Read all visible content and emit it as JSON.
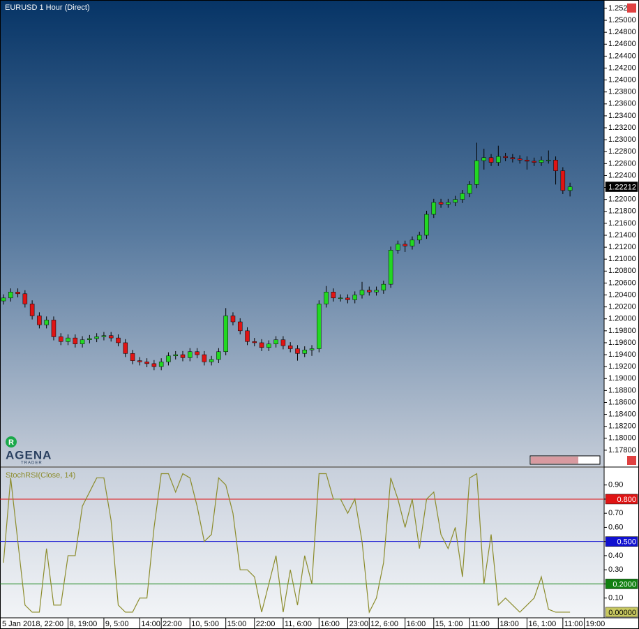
{
  "chart_data": [
    {
      "type": "candlestick",
      "title": "EURUSD 1 Hour (Direct)",
      "up_color": "#22d822",
      "down_color": "#e01414",
      "ylim": [
        1.1753,
        1.2534
      ],
      "yticks": [
        {
          "value": 1.178,
          "label": "1.17800"
        },
        {
          "value": 1.18,
          "label": "1.18000"
        },
        {
          "value": 1.182,
          "label": "1.18200"
        },
        {
          "value": 1.184,
          "label": "1.18400"
        },
        {
          "value": 1.186,
          "label": "1.18600"
        },
        {
          "value": 1.188,
          "label": "1.18800"
        },
        {
          "value": 1.19,
          "label": "1.19000"
        },
        {
          "value": 1.192,
          "label": "1.19200"
        },
        {
          "value": 1.194,
          "label": "1.19400"
        },
        {
          "value": 1.196,
          "label": "1.19600"
        },
        {
          "value": 1.198,
          "label": "1.19800"
        },
        {
          "value": 1.2,
          "label": "1.20000"
        },
        {
          "value": 1.202,
          "label": "1.20200"
        },
        {
          "value": 1.204,
          "label": "1.20400"
        },
        {
          "value": 1.206,
          "label": "1.20600"
        },
        {
          "value": 1.208,
          "label": "1.20800"
        },
        {
          "value": 1.21,
          "label": "1.21000"
        },
        {
          "value": 1.212,
          "label": "1.21200"
        },
        {
          "value": 1.214,
          "label": "1.21400"
        },
        {
          "value": 1.216,
          "label": "1.21600"
        },
        {
          "value": 1.218,
          "label": "1.21800"
        },
        {
          "value": 1.22,
          "label": "1.22000"
        },
        {
          "value": 1.222,
          "label": "1.22200"
        },
        {
          "value": 1.224,
          "label": "1.22400"
        },
        {
          "value": 1.226,
          "label": "1.22600"
        },
        {
          "value": 1.228,
          "label": "1.22800"
        },
        {
          "value": 1.23,
          "label": "1.23000"
        },
        {
          "value": 1.232,
          "label": "1.23200"
        },
        {
          "value": 1.234,
          "label": "1.23400"
        },
        {
          "value": 1.236,
          "label": "1.23600"
        },
        {
          "value": 1.238,
          "label": "1.23800"
        },
        {
          "value": 1.24,
          "label": "1.24000"
        },
        {
          "value": 1.242,
          "label": "1.24200"
        },
        {
          "value": 1.244,
          "label": "1.24400"
        },
        {
          "value": 1.246,
          "label": "1.24600"
        },
        {
          "value": 1.248,
          "label": "1.24800"
        },
        {
          "value": 1.25,
          "label": "1.25000"
        },
        {
          "value": 1.252,
          "label": "1.252"
        }
      ],
      "open": [
        1.203,
        1.2035,
        1.2045,
        1.2042,
        1.2025,
        1.2005,
        1.199,
        1.1998,
        1.197,
        1.1962,
        1.1968,
        1.1958,
        1.1965,
        1.1967,
        1.197,
        1.1972,
        1.1968,
        1.196,
        1.1942,
        1.193,
        1.1928,
        1.1925,
        1.192,
        1.1928,
        1.1938,
        1.194,
        1.1935,
        1.1945,
        1.194,
        1.1928,
        1.1932,
        1.1945,
        1.2005,
        1.1995,
        1.198,
        1.1962,
        1.196,
        1.1952,
        1.1958,
        1.1965,
        1.1955,
        1.195,
        1.1942,
        1.1948,
        1.195,
        1.2025,
        1.2045,
        1.2035,
        1.2035,
        1.2032,
        1.204,
        1.2048,
        1.2045,
        1.2048,
        1.2058,
        1.2115,
        1.2125,
        1.2122,
        1.2132,
        1.214,
        1.2175,
        1.2195,
        1.2192,
        1.2195,
        1.22,
        1.221,
        1.2225,
        1.2265,
        1.227,
        1.2262,
        1.2272,
        1.227,
        1.2268,
        1.2266,
        1.2264,
        1.2262,
        1.2266,
        1.2266,
        1.2248,
        1.2215,
        null,
        null,
        null,
        null
      ],
      "high": [
        1.2041,
        1.2051,
        1.2051,
        1.2048,
        1.2031,
        1.2011,
        1.2004,
        1.2004,
        1.1976,
        1.1974,
        1.1974,
        1.1971,
        1.1973,
        1.1976,
        1.1978,
        1.1978,
        1.1974,
        1.1966,
        1.1948,
        1.1936,
        1.1934,
        1.1931,
        1.1934,
        1.1944,
        1.1946,
        1.1946,
        1.1951,
        1.1951,
        1.1946,
        1.1938,
        1.1951,
        1.2018,
        1.2011,
        1.2001,
        1.1986,
        1.1968,
        1.1966,
        1.1964,
        1.1971,
        1.1971,
        1.1961,
        1.1956,
        1.1954,
        1.1956,
        1.2031,
        1.2055,
        1.2051,
        1.2041,
        1.2041,
        1.2046,
        1.2062,
        1.2054,
        1.2054,
        1.2064,
        1.2121,
        1.2131,
        1.2131,
        1.2138,
        1.2146,
        1.2181,
        1.2201,
        1.2201,
        1.2201,
        1.2206,
        1.2216,
        1.2231,
        1.2295,
        1.2285,
        1.2276,
        1.229,
        1.2278,
        1.2276,
        1.2274,
        1.2272,
        1.227,
        1.2272,
        1.2282,
        1.2272,
        1.2254,
        1.2228,
        null,
        null,
        null,
        null
      ],
      "low": [
        1.2024,
        1.2029,
        1.2036,
        1.2019,
        1.1999,
        1.1984,
        1.1984,
        1.1964,
        1.1956,
        1.1956,
        1.1952,
        1.1952,
        1.1959,
        1.1961,
        1.1964,
        1.1962,
        1.1954,
        1.1936,
        1.1924,
        1.1922,
        1.1919,
        1.1914,
        1.1914,
        1.1922,
        1.1932,
        1.1929,
        1.1929,
        1.1934,
        1.1922,
        1.1922,
        1.1926,
        1.1939,
        1.1989,
        1.1974,
        1.1956,
        1.1954,
        1.1946,
        1.1946,
        1.1952,
        1.1949,
        1.1944,
        1.193,
        1.1936,
        1.1938,
        1.1944,
        1.2019,
        1.2029,
        1.2029,
        1.2026,
        1.2026,
        1.2034,
        1.2039,
        1.2039,
        1.2042,
        1.2052,
        1.2109,
        1.2112,
        1.2116,
        1.2126,
        1.2134,
        1.2169,
        1.2186,
        1.2186,
        1.2189,
        1.2194,
        1.2204,
        1.2219,
        1.225,
        1.2256,
        1.2256,
        1.2264,
        1.2262,
        1.226,
        1.225,
        1.2256,
        1.2256,
        1.226,
        1.2225,
        1.2209,
        1.2205,
        null,
        null,
        null,
        null
      ],
      "close": [
        1.2035,
        1.2045,
        1.2042,
        1.2025,
        1.2005,
        1.199,
        1.1998,
        1.197,
        1.1962,
        1.1968,
        1.1958,
        1.1965,
        1.1967,
        1.197,
        1.1972,
        1.1968,
        1.196,
        1.1942,
        1.193,
        1.1928,
        1.1925,
        1.192,
        1.1928,
        1.1938,
        1.194,
        1.1935,
        1.1945,
        1.194,
        1.1928,
        1.1932,
        1.1945,
        1.2005,
        1.1995,
        1.198,
        1.1962,
        1.196,
        1.1952,
        1.1958,
        1.1965,
        1.1955,
        1.195,
        1.1942,
        1.1948,
        1.195,
        1.2025,
        1.2045,
        1.2035,
        1.2035,
        1.2032,
        1.204,
        1.2048,
        1.2045,
        1.2048,
        1.2058,
        1.2115,
        1.2125,
        1.2122,
        1.2132,
        1.214,
        1.2175,
        1.2195,
        1.2192,
        1.2195,
        1.22,
        1.221,
        1.2225,
        1.2265,
        1.227,
        1.2262,
        1.2272,
        1.227,
        1.2268,
        1.2266,
        1.2264,
        1.2262,
        1.2266,
        1.2266,
        1.2248,
        1.2215,
        1.22212,
        null,
        null,
        null,
        null
      ]
    },
    {
      "type": "line",
      "title": "StochRSI(Close, 14)",
      "color": "#8c8c2c",
      "categories": [
        "5 Jan 2018, 22:00",
        null,
        null,
        null,
        null,
        null,
        null,
        null,
        null,
        "8, 19:00",
        null,
        null,
        null,
        null,
        "9, 5:00",
        null,
        null,
        null,
        null,
        "14:00",
        null,
        null,
        "22:00",
        null,
        null,
        null,
        "10, 5:00",
        null,
        null,
        null,
        null,
        "15:00",
        null,
        null,
        null,
        "22:00",
        null,
        null,
        null,
        "11, 6:00",
        null,
        null,
        null,
        null,
        "16:00",
        null,
        null,
        null,
        "23:00",
        null,
        null,
        "12, 6:00",
        null,
        null,
        null,
        null,
        "16:00",
        null,
        null,
        null,
        "15, 1:00",
        null,
        null,
        null,
        null,
        "11:00",
        null,
        null,
        null,
        "18:00",
        null,
        null,
        null,
        "16, 1:00",
        null,
        null,
        null,
        null,
        "11:00",
        null,
        null,
        "19:00",
        null,
        null
      ],
      "values": [
        0.35,
        0.95,
        0.5,
        0.05,
        0,
        0,
        0.45,
        0.05,
        0.05,
        0.4,
        0.4,
        0.75,
        0.85,
        0.95,
        0.95,
        0.65,
        0.05,
        0,
        0,
        0.1,
        0.1,
        0.6,
        0.98,
        0.98,
        0.85,
        0.98,
        0.95,
        0.75,
        0.5,
        0.55,
        0.95,
        0.9,
        0.7,
        0.3,
        0.3,
        0.25,
        0,
        0.2,
        0.4,
        0,
        0.3,
        0.05,
        0.4,
        0.2,
        0.98,
        0.98,
        0.8,
        0.8,
        0.7,
        0.8,
        0.5,
        0,
        0.1,
        0.35,
        0.95,
        0.8,
        0.6,
        0.8,
        0.45,
        0.8,
        0.85,
        0.55,
        0.45,
        0.6,
        0.25,
        0.95,
        0.98,
        0.2,
        0.55,
        0.05,
        0.1,
        0.05,
        0,
        0.05,
        0.1,
        0.25,
        0.02,
        0,
        0,
        0,
        null,
        null,
        null,
        null
      ],
      "last_value_label": "0.00000",
      "last_value_color": "#c8c860",
      "ylim": [
        -0.04,
        1.022
      ],
      "yticks": [
        {
          "value": 0.1,
          "label": "0.10"
        },
        {
          "value": 0.2,
          "label": "0.20"
        },
        {
          "value": 0.3,
          "label": "0.30"
        },
        {
          "value": 0.4,
          "label": "0.40"
        },
        {
          "value": 0.5,
          "label": "0.50"
        },
        {
          "value": 0.6,
          "label": "0.60"
        },
        {
          "value": 0.7,
          "label": "0.70"
        },
        {
          "value": 0.8,
          "label": "0.80"
        },
        {
          "value": 0.9,
          "label": "0.90"
        }
      ],
      "levels": [
        {
          "value": 0.8,
          "label": "0.800",
          "color": "#e01414"
        },
        {
          "value": 0.5,
          "label": "0.500",
          "color": "#1010d0"
        },
        {
          "value": 0.2,
          "label": "0.2000",
          "color": "#108010"
        }
      ]
    }
  ],
  "branding": {
    "badge": "R",
    "logo": "AGENA",
    "sub": "TRADER"
  }
}
